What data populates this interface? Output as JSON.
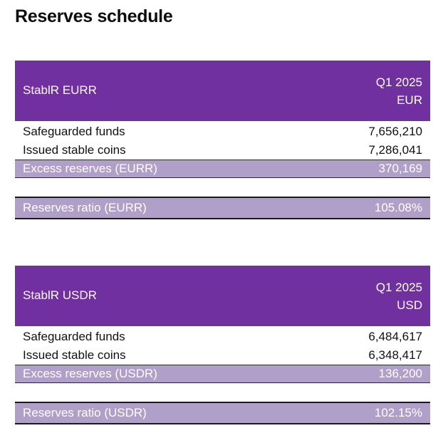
{
  "title": "Reserves schedule",
  "colors": {
    "header_bg": "#7030a0",
    "highlight_bg": "#b09fc8",
    "header_text": "#ffffff"
  },
  "schedules": [
    {
      "entity": "StablR EURR",
      "period": "Q1 2025",
      "currency": "EUR",
      "rows": [
        {
          "label": "Safeguarded funds",
          "value": "7,656,210"
        },
        {
          "label": "Issued stable coins",
          "value": "7,286,041"
        }
      ],
      "excess": {
        "label": "Excess reserves (EURR)",
        "value": "370,169"
      },
      "ratio": {
        "label": "Reserves ratio (EURR)",
        "value": "105.08%"
      }
    },
    {
      "entity": "StablR USDR",
      "period": "Q1 2025",
      "currency": "USD",
      "rows": [
        {
          "label": "Safeguarded funds",
          "value": "6,484,617"
        },
        {
          "label": "Issued stable coins",
          "value": "6,348,417"
        }
      ],
      "excess": {
        "label": "Excess reserves (USDR)",
        "value": "136,200"
      },
      "ratio": {
        "label": "Reserves ratio (USDR)",
        "value": "102.15%"
      }
    }
  ]
}
